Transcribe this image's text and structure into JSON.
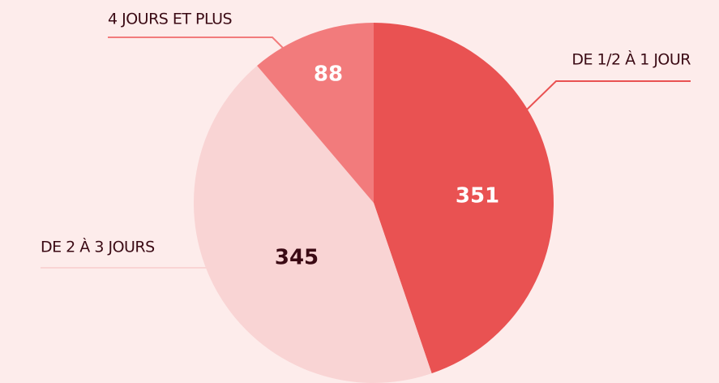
{
  "chart_data": {
    "type": "pie",
    "categories": [
      "DE 1/2 À 1 JOUR",
      "DE 2 À 3 JOURS",
      "4 JOURS ET PLUS"
    ],
    "values": [
      351,
      345,
      88
    ],
    "colors": [
      "#e95252",
      "#f9d4d4",
      "#f27b7c"
    ]
  }
}
